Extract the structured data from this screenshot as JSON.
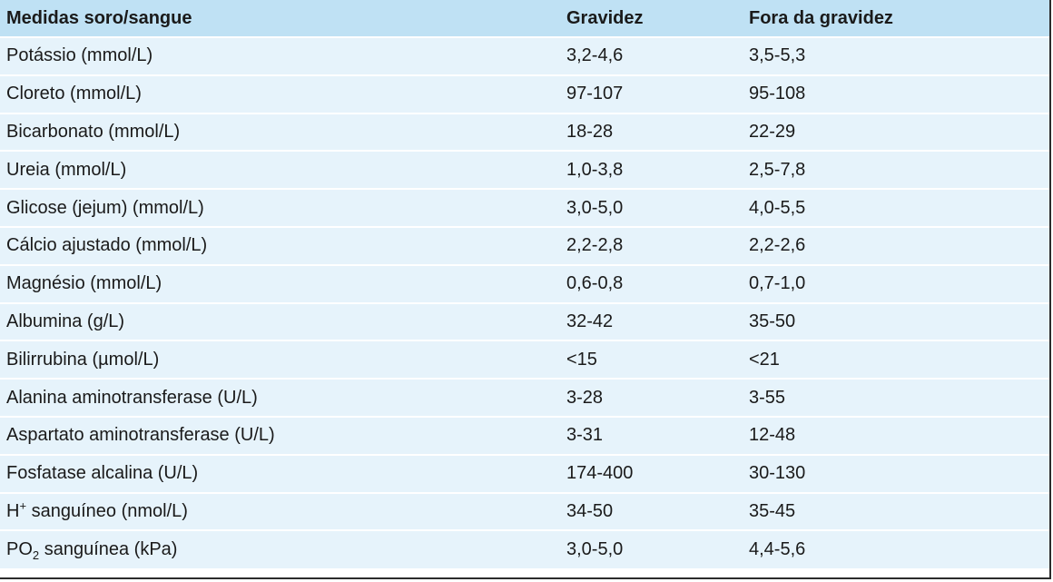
{
  "table": {
    "headers": [
      "Medidas soro/sangue",
      "Gravidez",
      "Fora da gravidez"
    ],
    "rows": [
      {
        "measure": "Potássio (mmol/L)",
        "pregnancy": "3,2-4,6",
        "non_pregnancy": "3,5-5,3"
      },
      {
        "measure": "Cloreto (mmol/L)",
        "pregnancy": "97-107",
        "non_pregnancy": "95-108"
      },
      {
        "measure": "Bicarbonato (mmol/L)",
        "pregnancy": "18-28",
        "non_pregnancy": "22-29"
      },
      {
        "measure": "Ureia (mmol/L)",
        "pregnancy": "1,0-3,8",
        "non_pregnancy": "2,5-7,8"
      },
      {
        "measure": "Glicose (jejum) (mmol/L)",
        "pregnancy": "3,0-5,0",
        "non_pregnancy": "4,0-5,5"
      },
      {
        "measure": "Cálcio ajustado (mmol/L)",
        "pregnancy": "2,2-2,8",
        "non_pregnancy": "2,2-2,6"
      },
      {
        "measure": "Magnésio (mmol/L)",
        "pregnancy": "0,6-0,8",
        "non_pregnancy": "0,7-1,0"
      },
      {
        "measure": "Albumina (g/L)",
        "pregnancy": "32-42",
        "non_pregnancy": "35-50"
      },
      {
        "measure": "Bilirrubina (µmol/L)",
        "pregnancy": "<15",
        "non_pregnancy": "<21"
      },
      {
        "measure": "Alanina aminotransferase (U/L)",
        "pregnancy": "3-28",
        "non_pregnancy": "3-55"
      },
      {
        "measure": "Aspartato aminotransferase (U/L)",
        "pregnancy": "3-31",
        "non_pregnancy": "12-48"
      },
      {
        "measure": "Fosfatase alcalina (U/L)",
        "pregnancy": "174-400",
        "non_pregnancy": "30-130"
      },
      {
        "measure_base": "H",
        "measure_sup": "+",
        "measure_rest": " sanguíneo (nmol/L)",
        "pregnancy": "34-50",
        "non_pregnancy": "35-45"
      },
      {
        "measure_base": "PO",
        "measure_sub": "2",
        "measure_rest": " sanguínea (kPa)",
        "pregnancy": "3,0-5,0",
        "non_pregnancy": "4,4-5,6"
      }
    ]
  },
  "colors": {
    "header_bg": "#bfe1f4",
    "row_bg": "#e6f3fb",
    "row_separator": "#ffffff"
  }
}
